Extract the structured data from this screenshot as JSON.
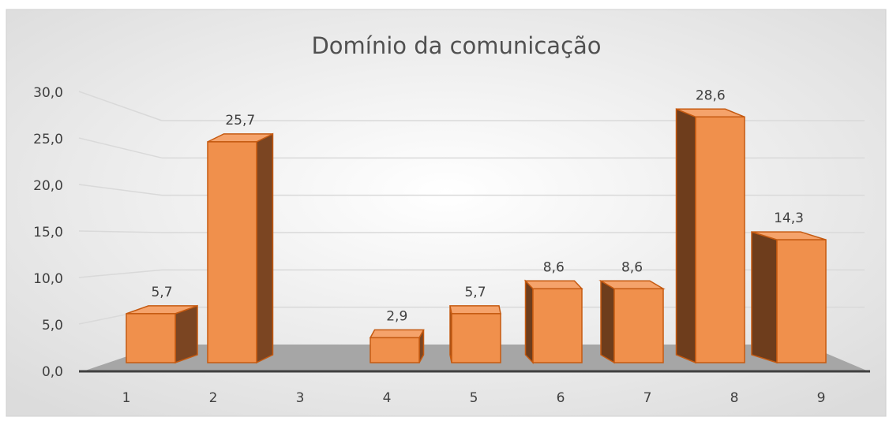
{
  "chart_data": {
    "type": "bar3d",
    "title": "Domínio da comunicação",
    "categories": [
      "1",
      "2",
      "3",
      "4",
      "5",
      "6",
      "7",
      "8",
      "9"
    ],
    "values": [
      5.7,
      25.7,
      null,
      2.9,
      5.7,
      8.6,
      8.6,
      28.6,
      14.3
    ],
    "value_labels": [
      "5,7",
      "25,7",
      null,
      "2,9",
      "5,7",
      "8,6",
      "8,6",
      "28,6",
      "14,3"
    ],
    "color": "#f0904c",
    "ylim": [
      0,
      30
    ],
    "yticks": [
      {
        "value": 0,
        "label": "0,0"
      },
      {
        "value": 5,
        "label": "5,0"
      },
      {
        "value": 10,
        "label": "10,0"
      },
      {
        "value": 15,
        "label": "15,0"
      },
      {
        "value": 20,
        "label": "20,0"
      },
      {
        "value": 25,
        "label": "25,0"
      },
      {
        "value": 30,
        "label": "30,0"
      }
    ],
    "grid": true
  }
}
